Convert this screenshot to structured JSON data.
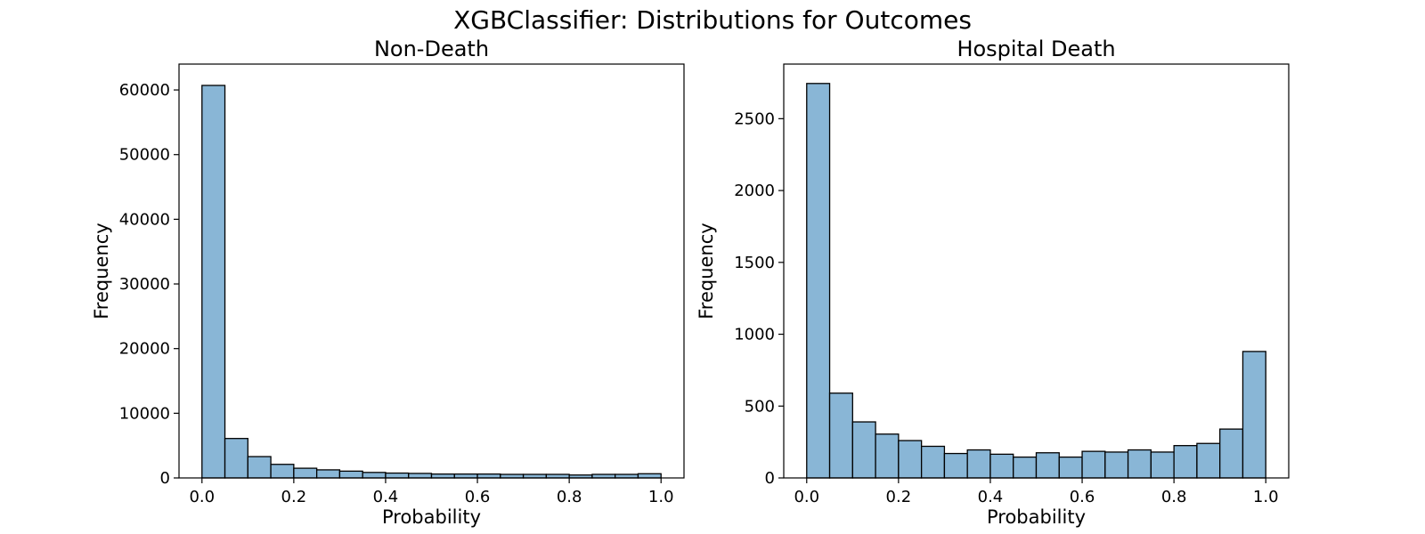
{
  "figure": {
    "title": "XGBClassifier: Distributions for Outcomes",
    "bar_color": "#89b6d6",
    "edge_color": "#000000"
  },
  "chart_data": [
    {
      "type": "bar",
      "title": "Non-Death",
      "xlabel": "Probability",
      "ylabel": "Frequency",
      "xlim": [
        -0.05,
        1.05
      ],
      "ylim": [
        0,
        64000
      ],
      "xticks": [
        0.0,
        0.2,
        0.4,
        0.6,
        0.8,
        1.0
      ],
      "xtick_labels": [
        "0.0",
        "0.2",
        "0.4",
        "0.6",
        "0.8",
        "1.0"
      ],
      "yticks": [
        0,
        10000,
        20000,
        30000,
        40000,
        50000,
        60000
      ],
      "ytick_labels": [
        "0",
        "10000",
        "20000",
        "30000",
        "40000",
        "50000",
        "60000"
      ],
      "bin_edges": [
        0.0,
        0.05,
        0.1,
        0.15,
        0.2,
        0.25,
        0.3,
        0.35,
        0.4,
        0.45,
        0.5,
        0.55,
        0.6,
        0.65,
        0.7,
        0.75,
        0.8,
        0.85,
        0.9,
        0.95,
        1.0
      ],
      "values": [
        60700,
        6100,
        3300,
        2100,
        1500,
        1250,
        1050,
        850,
        750,
        700,
        600,
        600,
        600,
        550,
        550,
        550,
        450,
        550,
        550,
        650
      ],
      "grid": false
    },
    {
      "type": "bar",
      "title": "Hospital Death",
      "xlabel": "Probability",
      "ylabel": "Frequency",
      "xlim": [
        -0.05,
        1.05
      ],
      "ylim": [
        0,
        2880
      ],
      "xticks": [
        0.0,
        0.2,
        0.4,
        0.6,
        0.8,
        1.0
      ],
      "xtick_labels": [
        "0.0",
        "0.2",
        "0.4",
        "0.6",
        "0.8",
        "1.0"
      ],
      "yticks": [
        0,
        500,
        1000,
        1500,
        2000,
        2500
      ],
      "ytick_labels": [
        "0",
        "500",
        "1000",
        "1500",
        "2000",
        "2500"
      ],
      "bin_edges": [
        0.0,
        0.05,
        0.1,
        0.15,
        0.2,
        0.25,
        0.3,
        0.35,
        0.4,
        0.45,
        0.5,
        0.55,
        0.6,
        0.65,
        0.7,
        0.75,
        0.8,
        0.85,
        0.9,
        0.95,
        1.0
      ],
      "values": [
        2745,
        590,
        390,
        305,
        260,
        220,
        170,
        195,
        165,
        145,
        175,
        145,
        185,
        180,
        195,
        180,
        225,
        240,
        340,
        880
      ],
      "grid": false
    }
  ]
}
